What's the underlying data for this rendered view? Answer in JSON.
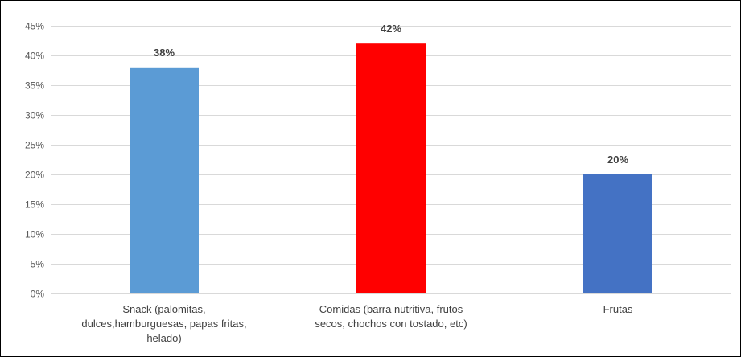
{
  "chart_data": {
    "type": "bar",
    "categories": [
      [
        "Snack (palomitas,",
        "dulces,hamburguesas, papas fritas,",
        "helado)"
      ],
      [
        "Comidas (barra nutritiva, frutos",
        "secos, chochos con tostado, etc)"
      ],
      [
        "Frutas"
      ]
    ],
    "values": [
      38,
      42,
      20
    ],
    "data_labels": [
      "38%",
      "42%",
      "20%"
    ],
    "bar_colors": [
      "#5B9BD5",
      "#FF0000",
      "#4472C4"
    ],
    "ylim": [
      0,
      45
    ],
    "ytick_step": 5,
    "ytick_format": "percent",
    "grid": true,
    "grid_color": "#D9D9D9",
    "legend": "none",
    "title": "",
    "xlabel": "",
    "ylabel": ""
  }
}
